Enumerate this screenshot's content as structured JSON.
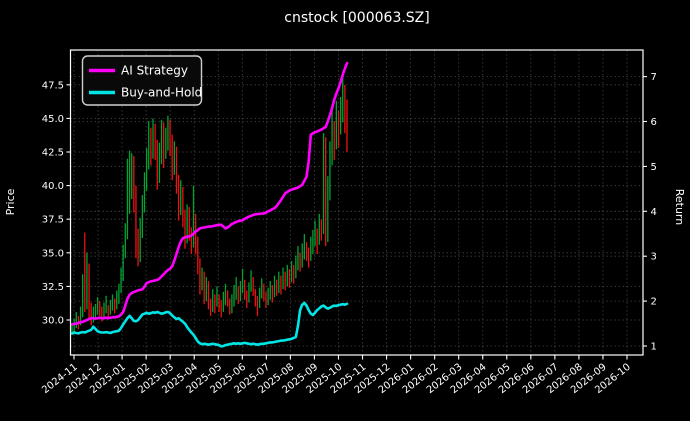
{
  "title": "cnstock [000063.SZ]",
  "legend": {
    "items": [
      {
        "label": "AI Strategy",
        "color": "#ff00ff"
      },
      {
        "label": "Buy-and-Hold",
        "color": "#00e5e6"
      }
    ]
  },
  "axes": {
    "left_label": "Price",
    "right_label": "Return",
    "price_tick_labels": [
      "30.0",
      "32.5",
      "35.0",
      "37.5",
      "40.0",
      "42.5",
      "45.0",
      "47.5"
    ],
    "price_tick_values": [
      30.0,
      32.5,
      35.0,
      37.5,
      40.0,
      42.5,
      45.0,
      47.5
    ],
    "return_tick_labels": [
      "1",
      "2",
      "3",
      "4",
      "5",
      "6",
      "7"
    ],
    "return_tick_values": [
      1,
      2,
      3,
      4,
      5,
      6,
      7
    ],
    "x_tick_labels": [
      "2024-11",
      "2024-12",
      "2025-01",
      "2025-02",
      "2025-03",
      "2025-04",
      "2025-05",
      "2025-06",
      "2025-07",
      "2025-08",
      "2025-09",
      "2025-10",
      "2025-11",
      "2025-12",
      "2026-01",
      "2026-02",
      "2026-03",
      "2026-04",
      "2026-05",
      "2026-06",
      "2026-07",
      "2026-08",
      "2026-09",
      "2026-10"
    ]
  },
  "colors": {
    "background": "#000000",
    "candle_up": "#00a433",
    "candle_down": "#ee1111",
    "ai_strategy": "#ff00ff",
    "buy_and_hold": "#00e5e6",
    "grid": "#ffffff",
    "spine": "#ffffff",
    "text": "#ffffff"
  },
  "chart_data": {
    "type": "candlestick+line",
    "title": "cnstock [000063.SZ]",
    "ylabel_left": "Price",
    "ylabel_right": "Return",
    "price_ylim": [
      27.4,
      50.1
    ],
    "return_ylim": [
      0.8,
      7.59
    ],
    "grid": true,
    "legend_position": "upper-left",
    "x_extent": {
      "first_tick": "2024-11",
      "last_tick": "2026-10",
      "data_start": "2024-11",
      "data_end": "2025-10",
      "data_span_months": 11.35
    },
    "candles": {
      "note": "daily-resolution OHLC approximated; color = close vs prior close",
      "high": [
        29.8,
        30.1,
        30.6,
        30.3,
        31.0,
        33.4,
        36.5,
        35.0,
        34.2,
        31.3,
        31.0,
        31.2,
        31.7,
        31.4,
        31.0,
        31.3,
        31.8,
        31.1,
        31.5,
        31.9,
        31.6,
        32.2,
        32.7,
        33.9,
        35.6,
        37.2,
        42.0,
        42.6,
        42.4,
        42.2,
        40.0,
        36.8,
        37.6,
        39.3,
        41.0,
        42.8,
        44.8,
        44.3,
        45.0,
        44.6,
        43.4,
        43.2,
        44.9,
        44.7,
        44.3,
        45.2,
        44.9,
        43.8,
        43.3,
        42.9,
        40.8,
        40.4,
        39.9,
        38.2,
        38.6,
        38.4,
        36.9,
        40.0,
        37.9,
        36.2,
        34.6,
        33.9,
        33.6,
        33.2,
        32.9,
        31.6,
        32.3,
        31.9,
        32.5,
        31.9,
        31.5,
        32.1,
        32.7,
        32.2,
        31.6,
        31.9,
        32.6,
        33.2,
        32.5,
        32.9,
        33.8,
        33.0,
        32.2,
        32.8,
        33.7,
        33.2,
        32.3,
        31.8,
        32.4,
        33.1,
        32.7,
        32.1,
        32.4,
        32.9,
        32.6,
        33.3,
        33.0,
        33.6,
        33.3,
        33.9,
        33.6,
        34.1,
        33.8,
        34.4,
        34.1,
        34.8,
        35.5,
        35.0,
        35.7,
        36.4,
        35.8,
        35.4,
        36.2,
        36.7,
        37.4,
        36.8,
        37.9,
        37.5,
        43.9,
        43.6,
        40.7,
        43.3,
        45.9,
        44.8,
        46.3,
        45.6,
        46.6,
        48.4,
        47.5,
        46.4
      ],
      "low": [
        28.9,
        29.1,
        29.4,
        29.3,
        29.6,
        30.2,
        30.6,
        30.8,
        30.0,
        29.6,
        29.8,
        30.1,
        30.4,
        30.3,
        29.9,
        30.1,
        30.5,
        30.1,
        30.4,
        30.7,
        30.5,
        30.8,
        31.2,
        32.0,
        32.9,
        34.6,
        36.0,
        37.9,
        39.0,
        38.0,
        34.6,
        34.0,
        34.3,
        36.1,
        38.0,
        39.6,
        41.2,
        41.5,
        42.0,
        41.9,
        39.7,
        40.2,
        41.6,
        41.3,
        42.0,
        42.6,
        42.2,
        40.4,
        40.8,
        39.4,
        37.4,
        37.8,
        36.9,
        35.3,
        35.7,
        35.9,
        34.9,
        35.4,
        34.9,
        33.4,
        31.9,
        32.2,
        31.2,
        31.4,
        30.8,
        30.3,
        30.6,
        30.5,
        31.0,
        30.6,
        30.2,
        30.6,
        31.1,
        31.0,
        30.4,
        30.5,
        31.0,
        31.5,
        31.2,
        31.4,
        32.0,
        31.5,
        30.9,
        31.3,
        32.1,
        31.8,
        31.0,
        30.3,
        30.9,
        31.6,
        31.4,
        30.9,
        31.1,
        31.5,
        31.3,
        31.7,
        31.8,
        32.0,
        31.9,
        32.3,
        32.2,
        32.5,
        32.4,
        32.8,
        32.7,
        33.1,
        33.7,
        33.6,
        33.9,
        34.5,
        34.4,
        33.9,
        34.4,
        34.9,
        35.5,
        34.9,
        35.6,
        35.9,
        36.4,
        35.5,
        35.8,
        38.9,
        41.5,
        41.9,
        42.7,
        42.8,
        43.8,
        44.7,
        43.9,
        42.5
      ],
      "close": [
        29.3,
        29.7,
        30.2,
        29.8,
        30.5,
        32.8,
        31.0,
        32.5,
        30.7,
        30.2,
        30.4,
        30.7,
        31.2,
        30.8,
        30.4,
        30.9,
        31.3,
        30.6,
        31.1,
        31.5,
        31.0,
        31.7,
        32.3,
        33.4,
        35.1,
        36.6,
        38.4,
        40.6,
        41.9,
        39.2,
        36.1,
        34.8,
        36.9,
        38.6,
        40.3,
        42.1,
        43.9,
        42.4,
        44.3,
        42.9,
        40.9,
        42.6,
        44.1,
        42.2,
        43.6,
        44.4,
        43.1,
        41.2,
        42.6,
        40.1,
        38.2,
        39.6,
        37.6,
        36.2,
        37.9,
        36.6,
        35.8,
        37.4,
        35.6,
        34.1,
        32.6,
        33.3,
        31.9,
        32.6,
        31.5,
        30.9,
        31.7,
        31.2,
        31.9,
        31.4,
        30.9,
        31.5,
        32.1,
        31.6,
        30.9,
        31.4,
        32.0,
        32.5,
        31.8,
        32.4,
        32.9,
        32.1,
        31.5,
        32.3,
        33.1,
        32.5,
        31.7,
        31.1,
        31.9,
        32.6,
        32.1,
        31.6,
        31.9,
        32.4,
        32.0,
        32.8,
        32.4,
        33.1,
        32.7,
        33.4,
        33.0,
        33.6,
        33.2,
        33.9,
        33.5,
        34.3,
        34.9,
        34.4,
        35.1,
        35.7,
        35.2,
        34.8,
        35.6,
        36.1,
        36.6,
        36.0,
        37.3,
        36.8,
        43.2,
        36.2,
        39.4,
        42.3,
        44.6,
        43.1,
        44.9,
        44.2,
        45.1,
        46.2,
        44.8,
        43.6
      ]
    },
    "series": [
      {
        "name": "AI Strategy",
        "axis": "return",
        "color": "#ff00ff",
        "values": [
          1.48,
          1.49,
          1.5,
          1.51,
          1.53,
          1.54,
          1.56,
          1.58,
          1.6,
          1.62,
          1.62,
          1.61,
          1.62,
          1.63,
          1.62,
          1.62,
          1.63,
          1.62,
          1.63,
          1.64,
          1.64,
          1.65,
          1.66,
          1.7,
          1.76,
          1.9,
          2.05,
          2.14,
          2.18,
          2.2,
          2.22,
          2.24,
          2.25,
          2.26,
          2.32,
          2.4,
          2.42,
          2.44,
          2.45,
          2.46,
          2.47,
          2.5,
          2.55,
          2.6,
          2.65,
          2.69,
          2.72,
          2.78,
          2.9,
          3.05,
          3.2,
          3.32,
          3.4,
          3.42,
          3.43,
          3.44,
          3.46,
          3.5,
          3.55,
          3.58,
          3.62,
          3.63,
          3.64,
          3.65,
          3.66,
          3.66,
          3.67,
          3.68,
          3.69,
          3.7,
          3.7,
          3.66,
          3.62,
          3.64,
          3.68,
          3.72,
          3.74,
          3.76,
          3.78,
          3.79,
          3.8,
          3.83,
          3.86,
          3.88,
          3.9,
          3.92,
          3.93,
          3.94,
          3.94,
          3.95,
          3.95,
          3.97,
          4.0,
          4.02,
          4.05,
          4.07,
          4.12,
          4.18,
          4.25,
          4.32,
          4.4,
          4.43,
          4.46,
          4.48,
          4.5,
          4.51,
          4.53,
          4.56,
          4.59,
          4.68,
          4.77,
          5.1,
          5.7,
          5.74,
          5.76,
          5.78,
          5.8,
          5.82,
          5.85,
          5.88,
          6.0,
          6.14,
          6.3,
          6.48,
          6.62,
          6.74,
          6.88,
          7.04,
          7.18,
          7.3
        ]
      },
      {
        "name": "Buy-and-Hold",
        "axis": "return",
        "color": "#00e5e6",
        "values": [
          1.28,
          1.3,
          1.29,
          1.28,
          1.3,
          1.31,
          1.3,
          1.32,
          1.34,
          1.36,
          1.43,
          1.38,
          1.33,
          1.31,
          1.3,
          1.3,
          1.31,
          1.3,
          1.29,
          1.31,
          1.32,
          1.33,
          1.34,
          1.4,
          1.48,
          1.55,
          1.62,
          1.67,
          1.62,
          1.56,
          1.55,
          1.58,
          1.64,
          1.7,
          1.72,
          1.74,
          1.72,
          1.73,
          1.75,
          1.74,
          1.76,
          1.74,
          1.72,
          1.73,
          1.75,
          1.76,
          1.73,
          1.68,
          1.64,
          1.6,
          1.62,
          1.58,
          1.54,
          1.5,
          1.42,
          1.36,
          1.3,
          1.25,
          1.18,
          1.1,
          1.06,
          1.04,
          1.05,
          1.04,
          1.03,
          1.04,
          1.05,
          1.04,
          1.03,
          1.02,
          0.99,
          1.0,
          1.02,
          1.03,
          1.04,
          1.05,
          1.06,
          1.05,
          1.06,
          1.05,
          1.06,
          1.07,
          1.06,
          1.05,
          1.04,
          1.05,
          1.04,
          1.03,
          1.04,
          1.05,
          1.05,
          1.06,
          1.07,
          1.08,
          1.08,
          1.09,
          1.1,
          1.11,
          1.12,
          1.12,
          1.13,
          1.14,
          1.15,
          1.16,
          1.18,
          1.2,
          1.45,
          1.8,
          1.92,
          1.96,
          1.9,
          1.8,
          1.72,
          1.69,
          1.74,
          1.8,
          1.84,
          1.88,
          1.9,
          1.86,
          1.83,
          1.85,
          1.88,
          1.9,
          1.89,
          1.91,
          1.92,
          1.93,
          1.92,
          1.94
        ]
      }
    ]
  }
}
